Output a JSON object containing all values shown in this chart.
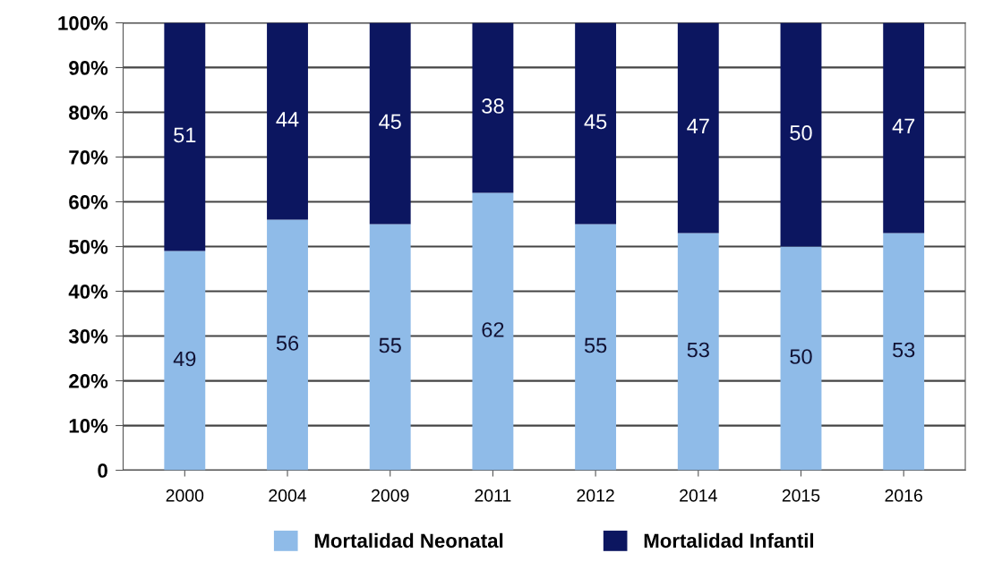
{
  "chart_data": {
    "type": "bar",
    "stacked": true,
    "categories": [
      "2000",
      "2004",
      "2009",
      "2011",
      "2012",
      "2014",
      "2015",
      "2016"
    ],
    "series": [
      {
        "name": "Mortalidad Neonatal",
        "color": "#8fbbe8",
        "values": [
          49,
          56,
          55,
          62,
          55,
          53,
          50,
          53
        ]
      },
      {
        "name": "Mortalidad Infantil",
        "color": "#0c1660",
        "values": [
          51,
          44,
          45,
          38,
          45,
          47,
          50,
          47
        ]
      }
    ],
    "ylim": [
      0,
      100
    ],
    "yticks": [
      {
        "value": 0,
        "label": "0"
      },
      {
        "value": 10,
        "label": "10%"
      },
      {
        "value": 20,
        "label": "20%"
      },
      {
        "value": 30,
        "label": "30%"
      },
      {
        "value": 40,
        "label": "40%"
      },
      {
        "value": 50,
        "label": "50%"
      },
      {
        "value": 60,
        "label": "60%"
      },
      {
        "value": 70,
        "label": "70%"
      },
      {
        "value": 80,
        "label": "80%"
      },
      {
        "value": 90,
        "label": "90%"
      },
      {
        "value": 100,
        "label": "100%"
      }
    ],
    "grid": "y",
    "legend": "bottom",
    "data_labels": true
  }
}
